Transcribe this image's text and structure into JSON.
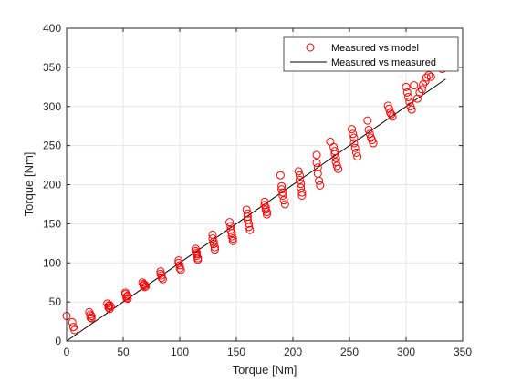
{
  "chart_data": {
    "type": "scatter",
    "title": "",
    "xlabel": "Torque [Nm]",
    "ylabel": "Torque [Nm]",
    "xlim": [
      0,
      350
    ],
    "ylim": [
      0,
      400
    ],
    "xticks": [
      0,
      50,
      100,
      150,
      200,
      250,
      300,
      350
    ],
    "yticks": [
      0,
      50,
      100,
      150,
      200,
      250,
      300,
      350,
      400
    ],
    "grid": true,
    "legend_position": "top-right",
    "colors": {
      "scatter": "#ff0000",
      "line": "#000000",
      "grid": "#e6e6e6",
      "axis": "#262626"
    },
    "series": [
      {
        "name": "Measured vs model",
        "kind": "scatter",
        "x": [
          0,
          5,
          6,
          7,
          20,
          21,
          21,
          22,
          22,
          36,
          37,
          37,
          38,
          38,
          39,
          52,
          52,
          53,
          53,
          54,
          54,
          67,
          68,
          68,
          69,
          69,
          70,
          83,
          83,
          84,
          84,
          85,
          99,
          99,
          100,
          100,
          101,
          114,
          114,
          115,
          115,
          115,
          116,
          116,
          129,
          129,
          130,
          130,
          131,
          131,
          144,
          145,
          145,
          146,
          146,
          147,
          147,
          159,
          160,
          160,
          160,
          161,
          161,
          162,
          175,
          175,
          176,
          176,
          177,
          177,
          189,
          190,
          190,
          191,
          191,
          192,
          193,
          205,
          206,
          206,
          207,
          207,
          208,
          208,
          221,
          221,
          222,
          222,
          223,
          224,
          233,
          236,
          237,
          237,
          238,
          238,
          239,
          240,
          252,
          253,
          254,
          254,
          255,
          256,
          257,
          266,
          267,
          268,
          269,
          270,
          271,
          284,
          285,
          286,
          287,
          288,
          300,
          301,
          302,
          303,
          304,
          305,
          307,
          310,
          312,
          314,
          315,
          317,
          318,
          320,
          322,
          332
        ],
        "y": [
          32,
          24,
          18,
          14,
          37,
          34,
          30,
          29,
          32,
          48,
          45,
          43,
          41,
          46,
          44,
          62,
          60,
          57,
          55,
          58,
          54,
          75,
          73,
          71,
          69,
          72,
          70,
          89,
          86,
          84,
          81,
          79,
          103,
          100,
          97,
          93,
          91,
          118,
          115,
          113,
          111,
          109,
          106,
          104,
          136,
          131,
          127,
          124,
          120,
          117,
          152,
          147,
          142,
          138,
          134,
          131,
          128,
          168,
          163,
          159,
          155,
          150,
          146,
          142,
          178,
          174,
          171,
          168,
          165,
          162,
          212,
          198,
          194,
          190,
          186,
          180,
          175,
          217,
          212,
          206,
          201,
          196,
          190,
          186,
          238,
          228,
          222,
          214,
          205,
          199,
          255,
          248,
          243,
          239,
          234,
          229,
          224,
          220,
          271,
          265,
          260,
          253,
          247,
          241,
          236,
          282,
          270,
          265,
          260,
          257,
          253,
          301,
          297,
          292,
          290,
          287,
          325,
          318,
          312,
          306,
          300,
          296,
          327,
          310,
          318,
          322,
          328,
          332,
          337,
          340,
          338,
          348
        ]
      },
      {
        "name": "Measured vs measured",
        "kind": "line",
        "x": [
          0,
          335
        ],
        "y": [
          0,
          335
        ]
      }
    ]
  }
}
